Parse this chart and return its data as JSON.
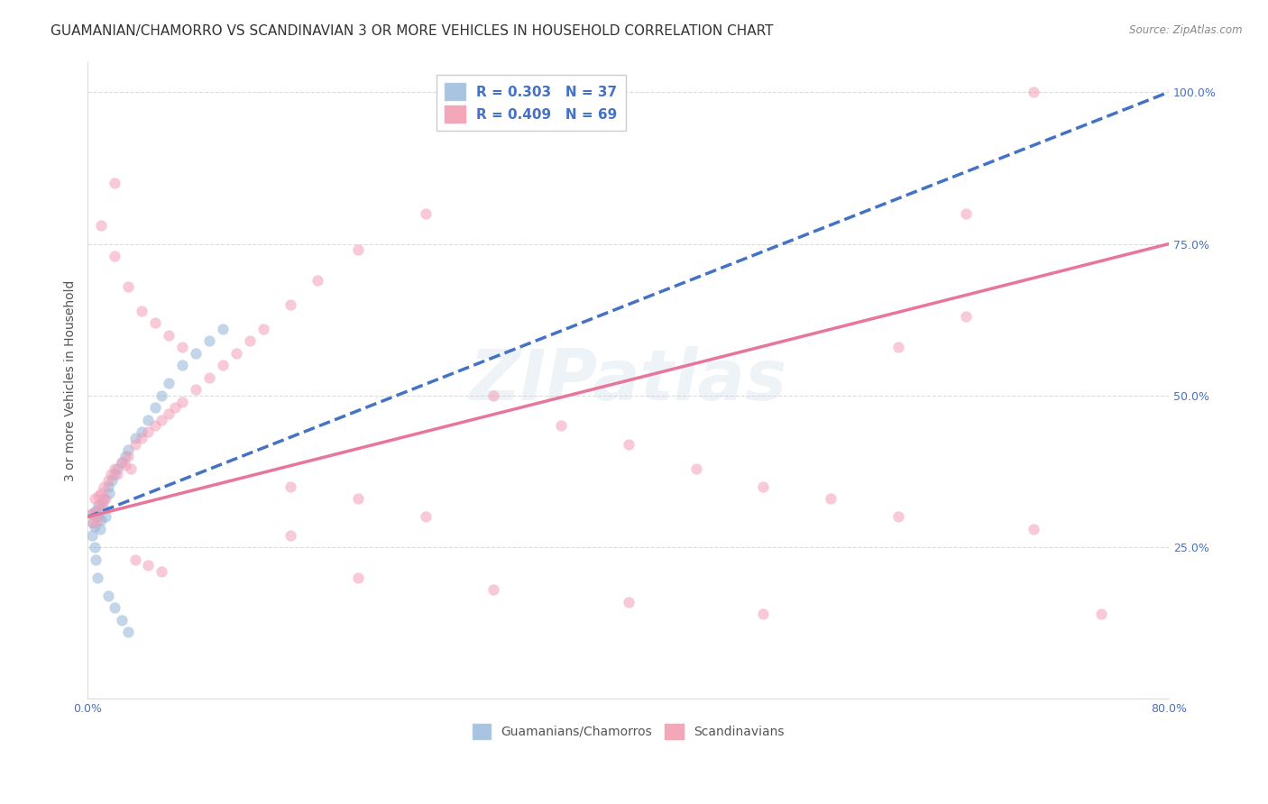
{
  "title": "GUAMANIAN/CHAMORRO VS SCANDINAVIAN 3 OR MORE VEHICLES IN HOUSEHOLD CORRELATION CHART",
  "source": "Source: ZipAtlas.com",
  "ylabel": "3 or more Vehicles in Household",
  "xlim": [
    0.0,
    80.0
  ],
  "ylim": [
    0.0,
    105.0
  ],
  "legend_labels_bottom": [
    "Guamanians/Chamorros",
    "Scandinavians"
  ],
  "watermark": "ZIPatlas",
  "blue_scatter": [
    [
      0.3,
      30.5
    ],
    [
      0.4,
      29.0
    ],
    [
      0.5,
      28.5
    ],
    [
      0.6,
      31.0
    ],
    [
      0.7,
      30.0
    ],
    [
      0.8,
      32.0
    ],
    [
      0.9,
      28.0
    ],
    [
      1.0,
      29.5
    ],
    [
      1.1,
      31.5
    ],
    [
      1.2,
      33.0
    ],
    [
      1.3,
      30.0
    ],
    [
      1.5,
      35.0
    ],
    [
      1.6,
      34.0
    ],
    [
      1.8,
      36.0
    ],
    [
      2.0,
      37.0
    ],
    [
      2.2,
      38.0
    ],
    [
      2.5,
      39.0
    ],
    [
      2.8,
      40.0
    ],
    [
      3.0,
      41.0
    ],
    [
      3.5,
      43.0
    ],
    [
      4.0,
      44.0
    ],
    [
      4.5,
      46.0
    ],
    [
      5.0,
      48.0
    ],
    [
      5.5,
      50.0
    ],
    [
      6.0,
      52.0
    ],
    [
      7.0,
      55.0
    ],
    [
      8.0,
      57.0
    ],
    [
      9.0,
      59.0
    ],
    [
      10.0,
      61.0
    ],
    [
      0.3,
      27.0
    ],
    [
      0.5,
      25.0
    ],
    [
      0.6,
      23.0
    ],
    [
      0.7,
      20.0
    ],
    [
      1.5,
      17.0
    ],
    [
      2.0,
      15.0
    ],
    [
      2.5,
      13.0
    ],
    [
      3.0,
      11.0
    ]
  ],
  "pink_scatter": [
    [
      0.3,
      30.5
    ],
    [
      0.4,
      29.0
    ],
    [
      0.5,
      33.0
    ],
    [
      0.6,
      31.0
    ],
    [
      0.7,
      29.5
    ],
    [
      0.8,
      33.5
    ],
    [
      0.9,
      32.0
    ],
    [
      1.0,
      34.0
    ],
    [
      1.1,
      32.5
    ],
    [
      1.2,
      35.0
    ],
    [
      1.3,
      33.0
    ],
    [
      1.5,
      36.0
    ],
    [
      1.7,
      37.0
    ],
    [
      2.0,
      38.0
    ],
    [
      2.2,
      37.0
    ],
    [
      2.5,
      39.0
    ],
    [
      2.8,
      38.5
    ],
    [
      3.0,
      40.0
    ],
    [
      3.2,
      38.0
    ],
    [
      3.5,
      42.0
    ],
    [
      4.0,
      43.0
    ],
    [
      4.5,
      44.0
    ],
    [
      5.0,
      45.0
    ],
    [
      5.5,
      46.0
    ],
    [
      6.0,
      47.0
    ],
    [
      6.5,
      48.0
    ],
    [
      7.0,
      49.0
    ],
    [
      8.0,
      51.0
    ],
    [
      9.0,
      53.0
    ],
    [
      10.0,
      55.0
    ],
    [
      11.0,
      57.0
    ],
    [
      12.0,
      59.0
    ],
    [
      13.0,
      61.0
    ],
    [
      15.0,
      65.0
    ],
    [
      17.0,
      69.0
    ],
    [
      20.0,
      74.0
    ],
    [
      25.0,
      80.0
    ],
    [
      30.0,
      50.0
    ],
    [
      35.0,
      45.0
    ],
    [
      40.0,
      42.0
    ],
    [
      45.0,
      38.0
    ],
    [
      50.0,
      35.0
    ],
    [
      55.0,
      33.0
    ],
    [
      60.0,
      58.0
    ],
    [
      65.0,
      63.0
    ],
    [
      70.0,
      100.0
    ],
    [
      2.0,
      73.0
    ],
    [
      3.0,
      68.0
    ],
    [
      4.0,
      64.0
    ],
    [
      5.0,
      62.0
    ],
    [
      6.0,
      60.0
    ],
    [
      7.0,
      58.0
    ],
    [
      1.0,
      78.0
    ],
    [
      2.0,
      85.0
    ],
    [
      3.5,
      23.0
    ],
    [
      4.5,
      22.0
    ],
    [
      5.5,
      21.0
    ],
    [
      15.0,
      27.0
    ],
    [
      20.0,
      20.0
    ],
    [
      30.0,
      18.0
    ],
    [
      40.0,
      16.0
    ],
    [
      50.0,
      14.0
    ],
    [
      60.0,
      30.0
    ],
    [
      70.0,
      28.0
    ],
    [
      75.0,
      14.0
    ],
    [
      65.0,
      80.0
    ],
    [
      15.0,
      35.0
    ],
    [
      20.0,
      33.0
    ],
    [
      25.0,
      30.0
    ]
  ],
  "blue_line": {
    "x0": 0,
    "y0": 30.0,
    "x1": 80,
    "y1": 100.0
  },
  "pink_line": {
    "x0": 0,
    "y0": 30.0,
    "x1": 80,
    "y1": 75.0
  },
  "blue_line_color": "#4472c4",
  "pink_line_color": "#e8769a",
  "blue_dot_color": "#92b4d8",
  "pink_dot_color": "#f4a0b8",
  "dot_size": 80,
  "dot_alpha": 0.55,
  "title_fontsize": 11,
  "axis_fontsize": 10,
  "tick_fontsize": 9,
  "tick_color": "#4472c4",
  "background_color": "#ffffff",
  "grid_color": "#cccccc",
  "grid_linestyle": "--",
  "grid_alpha": 0.7
}
